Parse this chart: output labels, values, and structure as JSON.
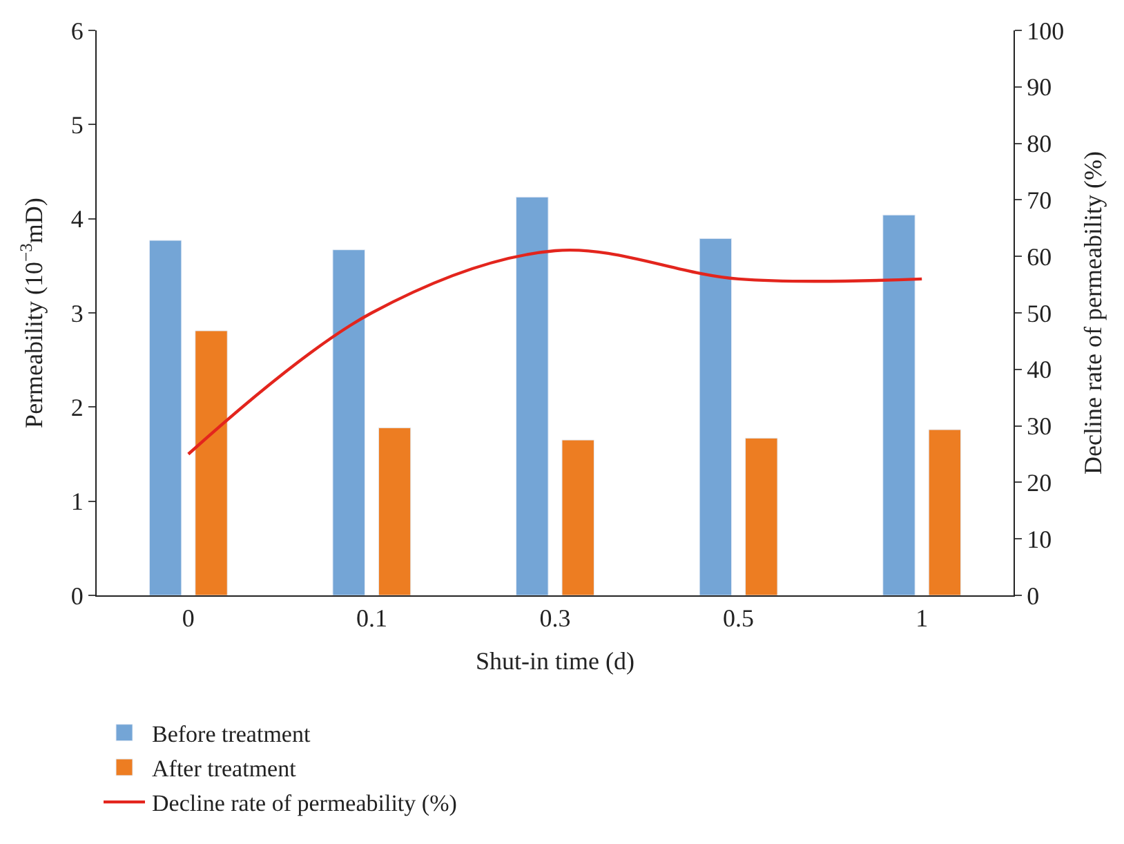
{
  "chart_data": {
    "type": "bar",
    "xlabel": "Shut-in time (d)",
    "ylabel": "Permeability (10$^{−3}$mD)",
    "y2label": "Decline rate of permeability (%)",
    "categories": [
      "0",
      "0.1",
      "0.3",
      "0.5",
      "1"
    ],
    "series": [
      {
        "name": "Before treatment",
        "color": "#74a5d6",
        "values": [
          3.77,
          3.67,
          4.23,
          3.79,
          4.04
        ]
      },
      {
        "name": "After treatment",
        "color": "#ed7d22",
        "values": [
          2.81,
          1.78,
          1.65,
          1.67,
          1.76
        ]
      },
      {
        "name": "Decline rate of permeability (%)",
        "type": "line",
        "axis": "y2",
        "color": "#e3251d",
        "values": [
          25,
          50,
          61,
          56,
          56
        ]
      }
    ],
    "ylim": [
      0,
      6
    ],
    "yticks": [
      0,
      1,
      2,
      3,
      4,
      5,
      6
    ],
    "y2lim": [
      0,
      100
    ],
    "y2ticks": [
      0,
      10,
      20,
      30,
      40,
      50,
      60,
      70,
      80,
      90,
      100
    ],
    "legend": "bottom",
    "marker": "none",
    "line_style": "solid"
  }
}
